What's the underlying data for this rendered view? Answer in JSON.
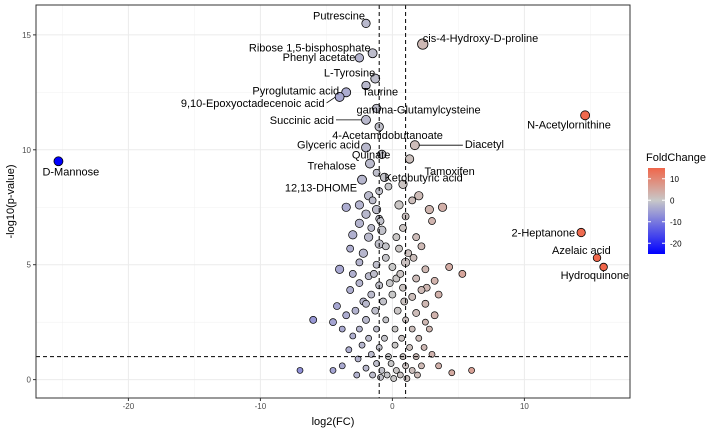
{
  "chart_data": {
    "type": "scatter",
    "xlabel": "log2(FC)",
    "ylabel": "-log10(p-value)",
    "xlim": [
      -27,
      18
    ],
    "ylim": [
      -0.8,
      16.3
    ],
    "x_ticks": [
      -20,
      -10,
      0,
      10
    ],
    "y_ticks": [
      0,
      5,
      10,
      15
    ],
    "vlines": [
      -1,
      1
    ],
    "hline": 1,
    "grid": true,
    "color_scale": {
      "title": "FoldChange",
      "low": "#0000ff",
      "mid": "#c8c8c8",
      "high": "#f0664a",
      "range": [
        -25,
        15
      ],
      "ticks": [
        10,
        0,
        -10,
        -20
      ]
    },
    "legend_position": "right",
    "labeled_points": [
      {
        "name": "Putrescine",
        "x": -2.0,
        "y": 15.5,
        "fc": -2.0,
        "size": 4.2
      },
      {
        "name": "cis-4-Hydroxy-D-proline",
        "x": 2.3,
        "y": 14.6,
        "fc": 2.3,
        "size": 5.2
      },
      {
        "name": "Ribose 1,5-bisphosphate",
        "x": -1.5,
        "y": 14.2,
        "fc": -1.5,
        "size": 4.5
      },
      {
        "name": "Phenyl acetate",
        "x": -2.5,
        "y": 14.0,
        "fc": -2.5,
        "size": 4.2
      },
      {
        "name": "L-Tyrosine",
        "x": -1.3,
        "y": 13.1,
        "fc": -1.3,
        "size": 4.5
      },
      {
        "name": "Taurine",
        "x": -2.0,
        "y": 12.8,
        "fc": -2.0,
        "size": 4.2
      },
      {
        "name": "Pyroglutamic acid",
        "x": -3.5,
        "y": 12.5,
        "fc": -3.5,
        "size": 4.5
      },
      {
        "name": "9,10-Epoxyoctadecenoic acid",
        "x": -4.0,
        "y": 12.3,
        "fc": -4.0,
        "size": 4.5
      },
      {
        "name": "gamma-Glutamylcysteine",
        "x": -1.2,
        "y": 11.8,
        "fc": -1.2,
        "size": 4.2
      },
      {
        "name": "N-Acetylornithine",
        "x": 14.6,
        "y": 11.5,
        "fc": 14.6,
        "size": 4.5
      },
      {
        "name": "Succinic acid",
        "x": -2.0,
        "y": 11.3,
        "fc": -2.0,
        "size": 4.5
      },
      {
        "name": "4-Acetamidobutanoate",
        "x": -1.0,
        "y": 11.0,
        "fc": -1.0,
        "size": 4.2
      },
      {
        "name": "Diacetyl",
        "x": 1.7,
        "y": 10.2,
        "fc": 1.7,
        "size": 4.5
      },
      {
        "name": "Glyceric acid",
        "x": -2.0,
        "y": 10.1,
        "fc": -2.0,
        "size": 4.5
      },
      {
        "name": "Quinate",
        "x": -0.8,
        "y": 9.8,
        "fc": -0.8,
        "size": 4.2
      },
      {
        "name": "Tamoxifen",
        "x": 1.3,
        "y": 9.6,
        "fc": 1.3,
        "size": 4.2
      },
      {
        "name": "D-Mannose",
        "x": -25.3,
        "y": 9.5,
        "fc": -25.3,
        "size": 4.5
      },
      {
        "name": "Trehalose",
        "x": -1.7,
        "y": 9.4,
        "fc": -1.7,
        "size": 4.5
      },
      {
        "name": "Ketobutyric acid",
        "x": -0.6,
        "y": 8.8,
        "fc": -0.6,
        "size": 4.2
      },
      {
        "name": "12,13-DHOME",
        "x": -2.3,
        "y": 8.7,
        "fc": -2.3,
        "size": 4.5
      },
      {
        "name": "2-Heptanone",
        "x": 14.3,
        "y": 6.4,
        "fc": 14.3,
        "size": 4.2
      },
      {
        "name": "Azelaic acid",
        "x": 15.5,
        "y": 5.3,
        "fc": 15.5,
        "size": 3.8
      },
      {
        "name": "Hydroquinone",
        "x": 16.0,
        "y": 4.9,
        "fc": 16.0,
        "size": 3.8
      }
    ],
    "other_points": [
      [
        -1.0,
        8.2,
        3.5
      ],
      [
        0.8,
        8.5,
        4.2
      ],
      [
        -1.8,
        8.0,
        4.2
      ],
      [
        2.0,
        8.0,
        4.2
      ],
      [
        -2.5,
        7.6,
        4.2
      ],
      [
        -1.2,
        7.4,
        4.2
      ],
      [
        0.5,
        7.6,
        4.2
      ],
      [
        1.5,
        7.8,
        3.5
      ],
      [
        2.8,
        7.4,
        4.2
      ],
      [
        3.8,
        7.5,
        4.2
      ],
      [
        -3.5,
        7.5,
        4.2
      ],
      [
        -2.0,
        7.2,
        4.2
      ],
      [
        -1.0,
        7.0,
        3.5
      ],
      [
        1.0,
        7.1,
        3.5
      ],
      [
        3.0,
        6.9,
        3.5
      ],
      [
        -2.5,
        6.8,
        4.2
      ],
      [
        -0.8,
        6.5,
        4.2
      ],
      [
        0.8,
        6.6,
        3.5
      ],
      [
        -3.0,
        6.3,
        4.2
      ],
      [
        -1.8,
        6.2,
        4.2
      ],
      [
        1.8,
        6.2,
        3.5
      ],
      [
        2.2,
        5.8,
        3.5
      ],
      [
        -1.0,
        5.9,
        4.2
      ],
      [
        0.5,
        5.7,
        3.5
      ],
      [
        -3.2,
        5.7,
        3.5
      ],
      [
        -2.2,
        5.5,
        4.2
      ],
      [
        1.2,
        5.5,
        3.5
      ],
      [
        -0.5,
        5.3,
        3.5
      ],
      [
        -2.5,
        5.1,
        3.5
      ],
      [
        -1.2,
        5.0,
        3.5
      ],
      [
        1.0,
        5.1,
        4.2
      ],
      [
        0.0,
        4.9,
        3.5
      ],
      [
        2.5,
        4.8,
        3.5
      ],
      [
        4.3,
        4.9,
        3.5
      ],
      [
        5.3,
        4.6,
        3.5
      ],
      [
        -4.0,
        4.8,
        4.2
      ],
      [
        -3.0,
        4.6,
        3.5
      ],
      [
        -1.8,
        4.5,
        3.5
      ],
      [
        0.3,
        4.4,
        3.5
      ],
      [
        1.8,
        4.4,
        3.5
      ],
      [
        3.2,
        4.3,
        3.5
      ],
      [
        -2.5,
        4.2,
        3.5
      ],
      [
        -1.0,
        4.1,
        3.5
      ],
      [
        0.8,
        4.0,
        3.5
      ],
      [
        2.6,
        4.0,
        3.5
      ],
      [
        -3.2,
        3.9,
        3.5
      ],
      [
        -1.6,
        3.7,
        3.5
      ],
      [
        0.0,
        3.7,
        3.5
      ],
      [
        1.5,
        3.6,
        3.5
      ],
      [
        3.5,
        3.7,
        3.5
      ],
      [
        -2.2,
        3.4,
        3.5
      ],
      [
        -0.7,
        3.4,
        3.5
      ],
      [
        0.9,
        3.4,
        3.5
      ],
      [
        2.5,
        3.3,
        3.5
      ],
      [
        -4.2,
        3.2,
        3.5
      ],
      [
        -2.8,
        3.0,
        3.5
      ],
      [
        -1.3,
        3.0,
        3.5
      ],
      [
        0.4,
        3.0,
        3.5
      ],
      [
        1.8,
        2.9,
        3.5
      ],
      [
        3.2,
        2.8,
        3.5
      ],
      [
        -3.5,
        2.8,
        3.5
      ],
      [
        -2.0,
        2.6,
        3.5
      ],
      [
        -0.5,
        2.6,
        3.0
      ],
      [
        1.0,
        2.6,
        3.0
      ],
      [
        2.5,
        2.5,
        3.0
      ],
      [
        -4.5,
        2.5,
        3.5
      ],
      [
        -3.8,
        2.2,
        3.0
      ],
      [
        -6.0,
        2.6,
        3.5
      ],
      [
        -2.5,
        2.2,
        3.0
      ],
      [
        -1.2,
        2.2,
        3.0
      ],
      [
        0.2,
        2.2,
        3.0
      ],
      [
        1.5,
        2.2,
        3.0
      ],
      [
        2.8,
        2.2,
        3.0
      ],
      [
        -3.0,
        1.9,
        3.0
      ],
      [
        -1.8,
        1.8,
        3.0
      ],
      [
        -0.6,
        1.8,
        3.0
      ],
      [
        0.7,
        1.8,
        3.0
      ],
      [
        2.0,
        1.8,
        3.0
      ],
      [
        -2.3,
        1.5,
        3.0
      ],
      [
        -1.0,
        1.4,
        3.0
      ],
      [
        0.2,
        1.5,
        3.0
      ],
      [
        1.3,
        1.4,
        3.0
      ],
      [
        2.4,
        1.4,
        3.0
      ],
      [
        -3.3,
        1.3,
        3.0
      ],
      [
        -1.6,
        1.1,
        3.0
      ],
      [
        -0.3,
        1.0,
        3.0
      ],
      [
        0.8,
        1.0,
        3.0
      ],
      [
        1.8,
        1.0,
        3.0
      ],
      [
        3.0,
        1.1,
        3.0
      ],
      [
        -2.6,
        0.9,
        3.0
      ],
      [
        -1.2,
        0.7,
        3.0
      ],
      [
        -0.1,
        0.7,
        3.0
      ],
      [
        1.0,
        0.6,
        3.0
      ],
      [
        2.2,
        0.6,
        3.0
      ],
      [
        3.5,
        0.6,
        3.0
      ],
      [
        -3.8,
        0.6,
        3.0
      ],
      [
        -2.0,
        0.5,
        3.0
      ],
      [
        -0.8,
        0.4,
        3.0
      ],
      [
        0.3,
        0.4,
        3.0
      ],
      [
        1.5,
        0.4,
        3.0
      ],
      [
        -1.5,
        0.2,
        3.0
      ],
      [
        -0.4,
        0.2,
        3.0
      ],
      [
        0.6,
        0.2,
        3.0
      ],
      [
        1.9,
        0.2,
        3.0
      ],
      [
        -2.7,
        0.2,
        3.0
      ],
      [
        -0.9,
        0.1,
        3.0
      ],
      [
        0.1,
        0.05,
        3.0
      ],
      [
        1.1,
        0.05,
        3.0
      ],
      [
        -7.0,
        0.4,
        3.0
      ],
      [
        6.0,
        0.4,
        3.0
      ],
      [
        -4.5,
        0.4,
        3.0
      ],
      [
        4.5,
        0.3,
        3.0
      ],
      [
        -1.2,
        9.0,
        3.5
      ],
      [
        -0.3,
        8.4,
        3.5
      ],
      [
        -1.5,
        7.8,
        3.5
      ],
      [
        -0.9,
        6.9,
        3.5
      ],
      [
        -1.6,
        6.6,
        3.5
      ],
      [
        0.3,
        6.2,
        3.5
      ],
      [
        -0.5,
        5.8,
        3.5
      ],
      [
        1.6,
        5.3,
        3.5
      ],
      [
        -1.4,
        4.6,
        3.5
      ],
      [
        0.6,
        4.6,
        3.5
      ],
      [
        -0.2,
        4.2,
        3.5
      ],
      [
        2.2,
        3.9,
        3.5
      ],
      [
        -2.0,
        3.3,
        3.5
      ]
    ]
  }
}
